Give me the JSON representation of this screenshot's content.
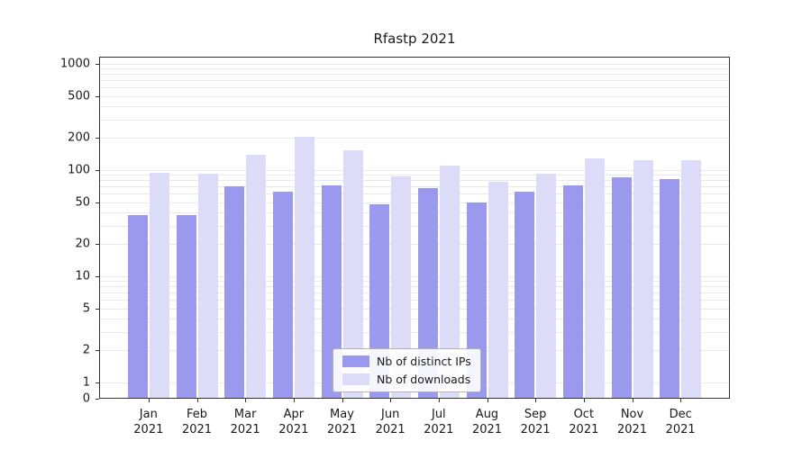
{
  "chart_data": {
    "type": "bar",
    "title": "Rfastp 2021",
    "categories": [
      "Jan",
      "Feb",
      "Mar",
      "Apr",
      "May",
      "Jun",
      "Jul",
      "Aug",
      "Sep",
      "Oct",
      "Nov",
      "Dec"
    ],
    "year_label": "2021",
    "series": [
      {
        "name": "Nb of distinct IPs",
        "color": "#9a99ed",
        "values": [
          38,
          38,
          70,
          62,
          72,
          48,
          68,
          50,
          63,
          72,
          85,
          82
        ]
      },
      {
        "name": "Nb of downloads",
        "color": "#dcdcf9",
        "values": [
          95,
          93,
          140,
          205,
          155,
          88,
          110,
          78,
          92,
          128,
          125,
          125
        ]
      }
    ],
    "yticks": [
      0,
      1,
      2,
      5,
      10,
      20,
      50,
      100,
      200,
      500,
      1000
    ],
    "ylim": [
      0,
      1000
    ],
    "yscale": "symlog",
    "grid": "minor-log-horizontal",
    "legend_position": "inside-bottom-center"
  }
}
